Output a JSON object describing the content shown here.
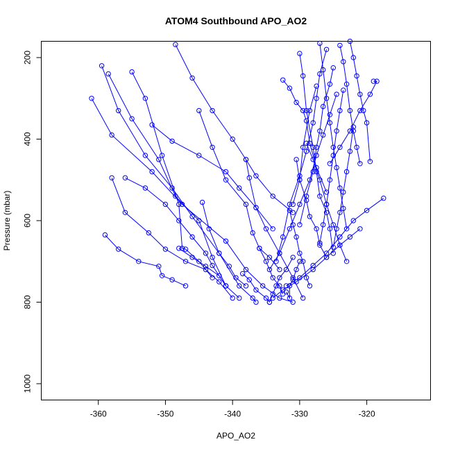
{
  "chart_data": {
    "type": "line",
    "title": "ATOM4 Southbound APO_AO2",
    "xlabel": "APO_AO2",
    "ylabel": "Pressure (mbar)",
    "xlim": [
      -368.5,
      -310.5
    ],
    "ylim": [
      1040,
      160
    ],
    "y_reversed": true,
    "x_ticks": [
      -360,
      -350,
      -340,
      -330,
      -320
    ],
    "y_ticks": [
      200,
      400,
      600,
      800,
      1000
    ],
    "grid": false,
    "legend": "none",
    "colors": {
      "series": "#0000ff",
      "axis": "#000000",
      "background": "#ffffff"
    },
    "marker": "open-circle",
    "series": [
      {
        "x": [
          -361,
          -358,
          -352,
          -347.5,
          -341,
          -338,
          -335.5,
          -333,
          -331
        ],
        "y": [
          300,
          390,
          480,
          560,
          650,
          720,
          760,
          790,
          800
        ]
      },
      {
        "x": [
          -359.5,
          -357,
          -353,
          -349,
          -346,
          -342,
          -339,
          -337,
          -336.5
        ],
        "y": [
          220,
          330,
          440,
          520,
          590,
          680,
          760,
          790,
          800
        ]
      },
      {
        "x": [
          -358.5,
          -355,
          -351,
          -348.5,
          -345,
          -343,
          -341,
          -339
        ],
        "y": [
          240,
          350,
          450,
          540,
          600,
          690,
          760,
          790
        ]
      },
      {
        "x": [
          -358,
          -356,
          -352.5,
          -350,
          -347,
          -344,
          -342,
          -340
        ],
        "y": [
          495,
          580,
          630,
          670,
          700,
          720,
          750,
          790
        ]
      },
      {
        "x": [
          -359,
          -357,
          -354,
          -351,
          -350.5,
          -349,
          -347
        ],
        "y": [
          635,
          670,
          700,
          712,
          735,
          745,
          760
        ]
      },
      {
        "x": [
          -355,
          -353,
          -350.5,
          -348,
          -347.5,
          -347,
          -345,
          -343
        ],
        "y": [
          235,
          300,
          440,
          560,
          668,
          670,
          700,
          740
        ]
      },
      {
        "x": [
          -356,
          -353,
          -350,
          -348,
          -346,
          -344,
          -343,
          -341
        ],
        "y": [
          495,
          520,
          560,
          600,
          640,
          680,
          710,
          760
        ]
      },
      {
        "x": [
          -352,
          -349,
          -345,
          -341,
          -339,
          -336.5,
          -334
        ],
        "y": [
          365,
          405,
          440,
          480,
          520,
          568,
          620
        ]
      },
      {
        "x": [
          -348.5,
          -346,
          -343,
          -340,
          -338,
          -336.5,
          -334,
          -331
        ],
        "y": [
          168,
          250,
          330,
          400,
          450,
          490,
          540,
          580
        ]
      },
      {
        "x": [
          -345,
          -343,
          -341,
          -338,
          -337,
          -336,
          -334.5,
          -333
        ],
        "y": [
          330,
          420,
          500,
          560,
          630,
          668,
          690,
          720
        ]
      },
      {
        "x": [
          -344.5,
          -343.5,
          -342,
          -340.5,
          -339.5,
          -338
        ],
        "y": [
          555,
          620,
          680,
          712,
          740,
          760
        ]
      },
      {
        "x": [
          -348,
          -346,
          -344,
          -342,
          -341
        ],
        "y": [
          668,
          690,
          712,
          735,
          760
        ]
      },
      {
        "x": [
          -338,
          -337.5,
          -336.5,
          -335,
          -333,
          -331,
          -329.5
        ],
        "y": [
          450,
          495,
          568,
          620,
          680,
          740,
          790
        ]
      },
      {
        "x": [
          -332.5,
          -331.5,
          -330.5,
          -329.5,
          -329,
          -328.5,
          -327.5,
          -326
        ],
        "y": [
          255,
          275,
          310,
          330,
          355,
          410,
          470,
          530
        ]
      },
      {
        "x": [
          -329,
          -328,
          -327,
          -326,
          -325,
          -324,
          -323
        ],
        "y": [
          410,
          450,
          500,
          560,
          610,
          660,
          700
        ]
      },
      {
        "x": [
          -330,
          -329.5,
          -329,
          -328,
          -327.5,
          -327,
          -326,
          -325.5,
          -325
        ],
        "y": [
          190,
          245,
          330,
          420,
          480,
          540,
          580,
          620,
          680
        ]
      },
      {
        "x": [
          -327,
          -326.5,
          -326,
          -325.5,
          -325,
          -324.5,
          -324,
          -323.5,
          -323
        ],
        "y": [
          165,
          230,
          300,
          360,
          420,
          470,
          520,
          570,
          620
        ]
      },
      {
        "x": [
          -324,
          -323.5,
          -323,
          -322.5,
          -322,
          -321.5,
          -321
        ],
        "y": [
          170,
          210,
          265,
          330,
          380,
          420,
          460
        ]
      },
      {
        "x": [
          -322.5,
          -322,
          -321.5,
          -321,
          -320.5,
          -320,
          -319.5
        ],
        "y": [
          160,
          200,
          245,
          290,
          330,
          360,
          455
        ]
      },
      {
        "x": [
          -319,
          -318.5,
          -319.5,
          -321,
          -322.5,
          -324,
          -325.5
        ],
        "y": [
          258,
          258,
          290,
          330,
          380,
          420,
          460
        ]
      },
      {
        "x": [
          -317.5,
          -320,
          -322,
          -324,
          -326,
          -328,
          -330,
          -332
        ],
        "y": [
          545,
          575,
          600,
          640,
          680,
          710,
          740,
          760
        ]
      },
      {
        "x": [
          -321,
          -322.5,
          -324,
          -326,
          -328,
          -330.5,
          -332.5,
          -334
        ],
        "y": [
          620,
          640,
          660,
          690,
          720,
          750,
          770,
          790
        ]
      },
      {
        "x": [
          -324.5,
          -325.5,
          -326.5,
          -327.5,
          -328.5,
          -330,
          -331.5,
          -333,
          -334.5
        ],
        "y": [
          290,
          340,
          390,
          440,
          500,
          560,
          620,
          680,
          720
        ]
      },
      {
        "x": [
          -326,
          -327,
          -327.5,
          -328,
          -329,
          -330,
          -331.5,
          -332.5,
          -333.5
        ],
        "y": [
          180,
          240,
          300,
          360,
          430,
          490,
          560,
          640,
          700
        ]
      },
      {
        "x": [
          -325,
          -325.5,
          -326.5,
          -327,
          -327.5,
          -328,
          -329,
          -330
        ],
        "y": [
          225,
          265,
          320,
          380,
          420,
          480,
          540,
          610
        ]
      },
      {
        "x": [
          -323.5,
          -324,
          -324.5,
          -325,
          -325.5,
          -326,
          -326.5,
          -327
        ],
        "y": [
          280,
          330,
          380,
          440,
          500,
          560,
          610,
          655
        ]
      },
      {
        "x": [
          -322,
          -322.5,
          -323,
          -323.5,
          -324,
          -324.5,
          -325
        ],
        "y": [
          370,
          430,
          480,
          530,
          580,
          620,
          665
        ]
      },
      {
        "x": [
          -330.5,
          -330,
          -329,
          -328.5,
          -327.5,
          -327,
          -326
        ],
        "y": [
          450,
          500,
          550,
          590,
          620,
          660,
          690
        ]
      },
      {
        "x": [
          -331.5,
          -331,
          -330.5,
          -330,
          -329.5,
          -329,
          -328.5
        ],
        "y": [
          575,
          610,
          640,
          680,
          700,
          740,
          760
        ]
      },
      {
        "x": [
          -332,
          -331.5,
          -331.5,
          -331,
          -330.5,
          -330
        ],
        "y": [
          775,
          790,
          760,
          745,
          720,
          700
        ]
      },
      {
        "x": [
          -334.5,
          -334,
          -333.5,
          -333,
          -332,
          -331
        ],
        "y": [
          800,
          780,
          760,
          740,
          720,
          690
        ]
      },
      {
        "x": [
          -336,
          -335,
          -334,
          -333,
          -332.5
        ],
        "y": [
          668,
          700,
          740,
          760,
          780
        ]
      },
      {
        "x": [
          -338.5,
          -337.5,
          -336.5,
          -335,
          -334.5
        ],
        "y": [
          730,
          745,
          770,
          790,
          800
        ]
      },
      {
        "x": [
          -327.5,
          -328.5,
          -329.5,
          -330,
          -331
        ],
        "y": [
          270,
          330,
          420,
          500,
          560
        ]
      }
    ]
  }
}
